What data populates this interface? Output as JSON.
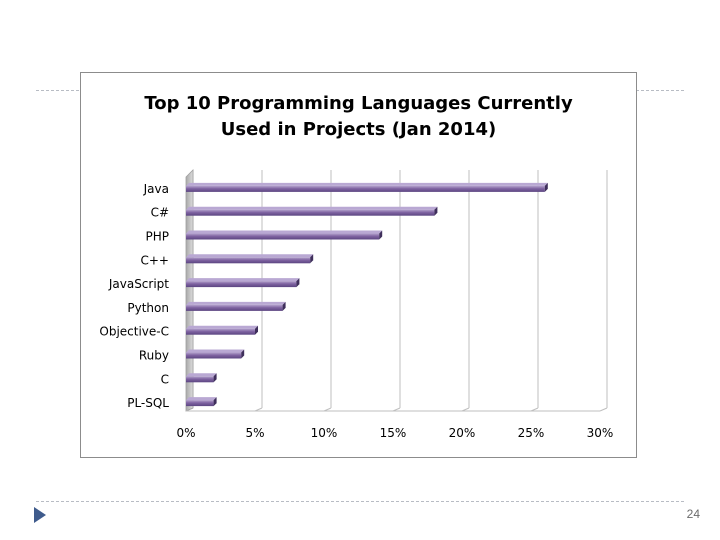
{
  "slide": {
    "number": "24",
    "accent_color": "#3f5b8c"
  },
  "chart_data": {
    "type": "bar",
    "orientation": "horizontal",
    "title": "Top 10 Programming Languages Currently Used in Projects (Jan 2014)",
    "title_lines": [
      "Top 10 Programming Languages Currently",
      "Used in Projects (Jan 2014)"
    ],
    "categories": [
      "Java",
      "C#",
      "PHP",
      "C++",
      "JavaScript",
      "Python",
      "Objective-C",
      "Ruby",
      "C",
      "PL-SQL"
    ],
    "values": [
      26,
      18,
      14,
      9,
      8,
      7,
      5,
      4,
      2,
      2
    ],
    "value_unit": "%",
    "xlim": [
      0,
      30
    ],
    "xticks": [
      0,
      5,
      10,
      15,
      20,
      25,
      30
    ],
    "xtick_labels": [
      "0%",
      "5%",
      "10%",
      "15%",
      "20%",
      "25%",
      "30%"
    ],
    "grid": true,
    "bar_color": "#8064a2",
    "bar_dark_color": "#3f2f5c",
    "legend": "none"
  }
}
